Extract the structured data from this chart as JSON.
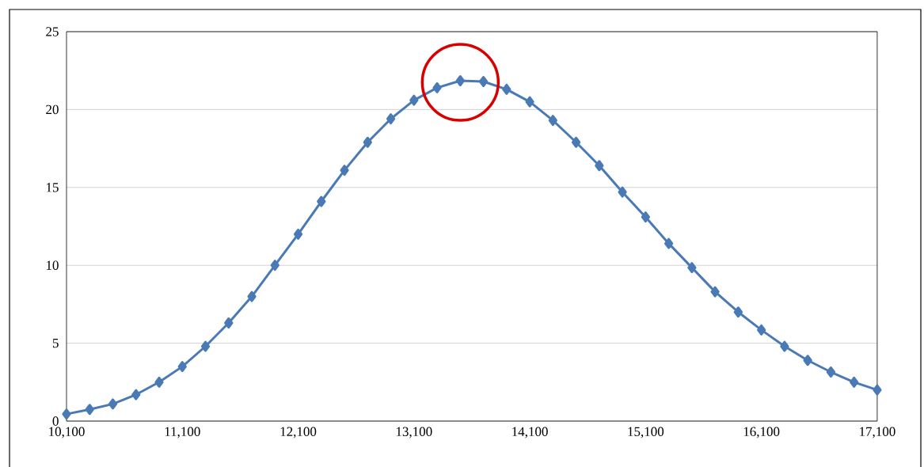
{
  "chart_data": {
    "type": "line",
    "x": [
      10100,
      10300,
      10500,
      10700,
      10900,
      11100,
      11300,
      11500,
      11700,
      11900,
      12100,
      12300,
      12500,
      12700,
      12900,
      13100,
      13300,
      13500,
      13700,
      13900,
      14100,
      14300,
      14500,
      14700,
      14900,
      15100,
      15300,
      15500,
      15700,
      15900,
      16100,
      16300,
      16500,
      16700,
      16900,
      17100
    ],
    "series": [
      {
        "color": "#4a7ab5",
        "values": [
          0.45,
          0.75,
          1.1,
          1.7,
          2.5,
          3.5,
          4.8,
          6.3,
          8.0,
          10.0,
          12.0,
          14.1,
          16.1,
          17.9,
          19.4,
          20.6,
          21.4,
          21.85,
          21.8,
          21.3,
          20.5,
          19.3,
          17.9,
          16.4,
          14.7,
          13.1,
          11.4,
          9.85,
          8.3,
          7.0,
          5.85,
          4.8,
          3.9,
          3.15,
          2.5,
          2.0
        ]
      }
    ],
    "xlim": [
      10100,
      17100
    ],
    "xticks": [
      {
        "value": 10100,
        "label": "10,100"
      },
      {
        "value": 11100,
        "label": "11,100"
      },
      {
        "value": 12100,
        "label": "12,100"
      },
      {
        "value": 13100,
        "label": "13,100"
      },
      {
        "value": 14100,
        "label": "14,100"
      },
      {
        "value": 15100,
        "label": "15,100"
      },
      {
        "value": 16100,
        "label": "16,100"
      },
      {
        "value": 17100,
        "label": "17,100"
      }
    ],
    "ylim": [
      0,
      25
    ],
    "yticks": [
      0,
      5,
      10,
      15,
      20,
      25
    ],
    "grid": "y",
    "marker": "diamond",
    "line_style": "solid"
  }
}
